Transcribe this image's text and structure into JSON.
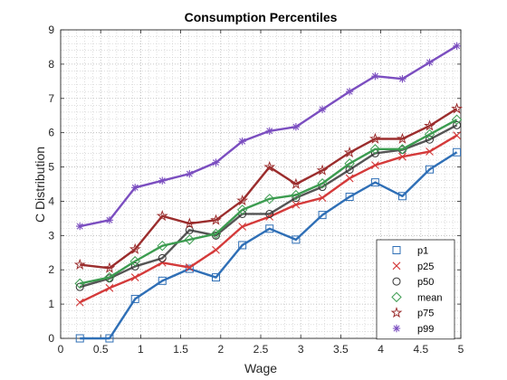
{
  "chart_data": {
    "type": "line",
    "title": "Consumption Percentiles",
    "xlabel": "Wage",
    "ylabel": "C Distribution",
    "xlim": [
      0,
      5
    ],
    "ylim": [
      0,
      9
    ],
    "xticks": [
      "0",
      "0.5",
      "1",
      "1.5",
      "2",
      "2.5",
      "3",
      "3.5",
      "4",
      "4.5",
      "5"
    ],
    "yticks": [
      "0",
      "1",
      "2",
      "3",
      "4",
      "5",
      "6",
      "7",
      "8",
      "9"
    ],
    "grid": "minor dotted",
    "legend_position": "bottom-right",
    "x": [
      0.24,
      0.61,
      0.93,
      1.27,
      1.61,
      1.94,
      2.27,
      2.61,
      2.94,
      3.27,
      3.61,
      3.93,
      4.27,
      4.61,
      4.95
    ],
    "series": [
      {
        "name": "p1",
        "marker": "square",
        "line_color": "#2f6fb6",
        "marker_color": "#2f6fb6",
        "values": [
          0.0,
          0.0,
          1.15,
          1.68,
          2.03,
          1.78,
          2.72,
          3.2,
          2.88,
          3.6,
          4.13,
          4.55,
          4.15,
          4.93,
          5.43
        ]
      },
      {
        "name": "p25",
        "marker": "x",
        "line_color": "#d43a3a",
        "marker_color": "#d43a3a",
        "values": [
          1.05,
          1.47,
          1.78,
          2.21,
          2.07,
          2.58,
          3.26,
          3.55,
          3.9,
          4.1,
          4.67,
          5.05,
          5.3,
          5.45,
          5.92
        ]
      },
      {
        "name": "p50",
        "marker": "circle",
        "line_color": "#555555",
        "marker_color": "#333333",
        "values": [
          1.5,
          1.75,
          2.1,
          2.34,
          3.16,
          3.0,
          3.63,
          3.63,
          4.1,
          4.42,
          4.92,
          5.4,
          5.5,
          5.8,
          6.22
        ]
      },
      {
        "name": "mean",
        "marker": "diamond",
        "line_color": "#3c9c50",
        "marker_color": "#3c9c50",
        "values": [
          1.6,
          1.78,
          2.25,
          2.7,
          2.88,
          3.05,
          3.75,
          4.07,
          4.18,
          4.52,
          5.1,
          5.52,
          5.52,
          5.95,
          6.38
        ]
      },
      {
        "name": "p75",
        "marker": "star",
        "line_color": "#9b2d2d",
        "marker_color": "#9b2d2d",
        "values": [
          2.15,
          2.05,
          2.6,
          3.57,
          3.35,
          3.45,
          4.02,
          5.0,
          4.5,
          4.9,
          5.42,
          5.82,
          5.82,
          6.2,
          6.7
        ]
      },
      {
        "name": "p99",
        "marker": "asterisk",
        "line_color": "#7b4ec0",
        "marker_color": "#7b4ec0",
        "values": [
          3.27,
          3.45,
          4.4,
          4.6,
          4.8,
          5.13,
          5.75,
          6.05,
          6.17,
          6.68,
          7.2,
          7.65,
          7.57,
          8.05,
          8.53
        ]
      }
    ]
  }
}
